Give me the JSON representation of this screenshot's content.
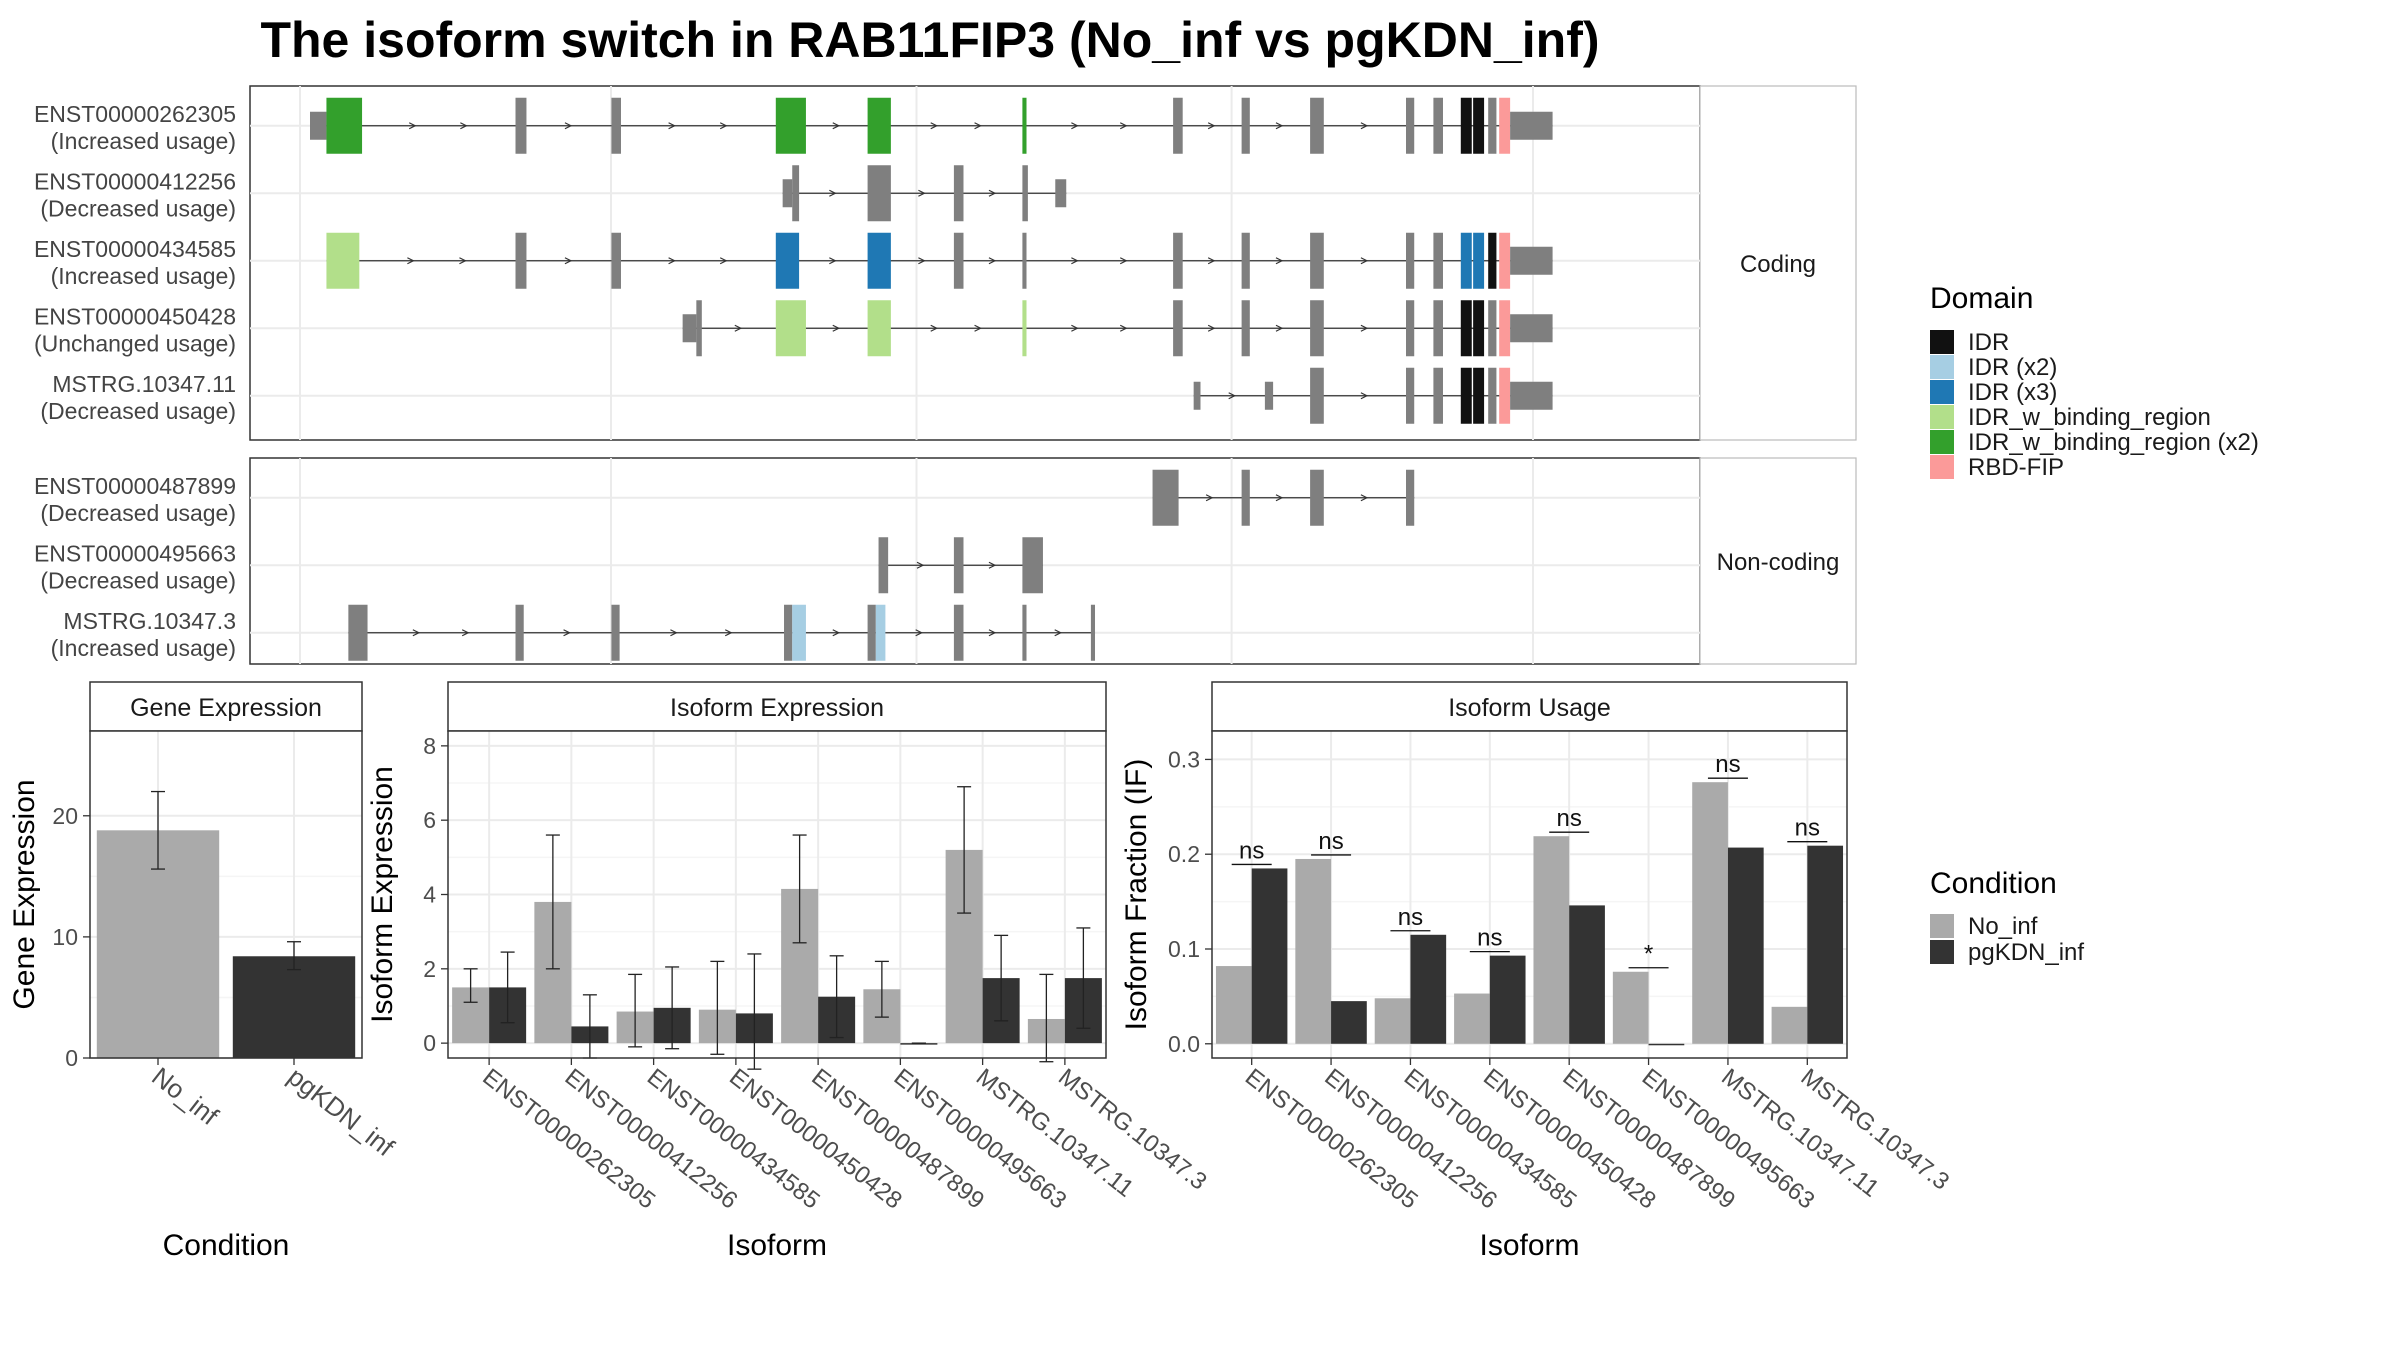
{
  "figure": {
    "title": "The isoform switch in RAB11FIP3 (No_inf vs pgKDN_inf)"
  },
  "colors": {
    "exon": "#7f7f7f",
    "no_inf": "#aaaaaa",
    "pgkdn_inf": "#333333",
    "panel_border": "#333333",
    "strip_bg": "#ffffff",
    "grid": "#ebebeb"
  },
  "structure": {
    "coding_label": "Coding",
    "noncoding_label": "Non-coding",
    "coding": [
      {
        "id": "ENST00000262305",
        "usage": "(Increased usage)",
        "start": 0.0,
        "end": 0.92,
        "exons": [
          [
            0.0,
            0.012,
            "s"
          ],
          [
            0.012,
            0.038,
            "IDR_w_binding_region (x2)"
          ],
          [
            0.15,
            0.158,
            "n"
          ],
          [
            0.22,
            0.227,
            "n"
          ],
          [
            0.34,
            0.362,
            "IDR_w_binding_region (x2)"
          ],
          [
            0.407,
            0.424,
            "IDR_w_binding_region (x2)"
          ],
          [
            0.52,
            0.523,
            "IDR_w_binding_region (x2)"
          ],
          [
            0.63,
            0.637,
            "n"
          ],
          [
            0.68,
            0.686,
            "n"
          ],
          [
            0.73,
            0.74,
            "n"
          ],
          [
            0.8,
            0.806,
            "n"
          ],
          [
            0.82,
            0.827,
            "n"
          ],
          [
            0.84,
            0.848,
            "IDR"
          ],
          [
            0.849,
            0.857,
            "IDR"
          ],
          [
            0.86,
            0.866,
            "n"
          ],
          [
            0.868,
            0.876,
            "RBD-FIP"
          ],
          [
            0.876,
            0.907,
            "s"
          ]
        ]
      },
      {
        "id": "ENST00000412256",
        "usage": "(Decreased usage)",
        "start": 0.345,
        "end": 0.53,
        "exons": [
          [
            0.345,
            0.352,
            "s"
          ],
          [
            0.352,
            0.357,
            "n"
          ],
          [
            0.407,
            0.424,
            "n"
          ],
          [
            0.47,
            0.477,
            "n"
          ],
          [
            0.52,
            0.524,
            "n"
          ],
          [
            0.544,
            0.552,
            "s"
          ]
        ]
      },
      {
        "id": "ENST00000434585",
        "usage": "(Increased usage)",
        "start": 0.012,
        "end": 0.92,
        "exons": [
          [
            0.012,
            0.036,
            "IDR_w_binding_region"
          ],
          [
            0.15,
            0.158,
            "n"
          ],
          [
            0.22,
            0.227,
            "n"
          ],
          [
            0.34,
            0.357,
            "IDR (x3)"
          ],
          [
            0.407,
            0.424,
            "IDR (x3)"
          ],
          [
            0.47,
            0.477,
            "n"
          ],
          [
            0.52,
            0.523,
            "n"
          ],
          [
            0.63,
            0.637,
            "n"
          ],
          [
            0.68,
            0.686,
            "n"
          ],
          [
            0.73,
            0.74,
            "n"
          ],
          [
            0.8,
            0.806,
            "n"
          ],
          [
            0.82,
            0.827,
            "n"
          ],
          [
            0.84,
            0.848,
            "IDR (x3)"
          ],
          [
            0.849,
            0.857,
            "IDR (x3)"
          ],
          [
            0.86,
            0.866,
            "IDR"
          ],
          [
            0.868,
            0.876,
            "RBD-FIP"
          ],
          [
            0.876,
            0.907,
            "s"
          ]
        ]
      },
      {
        "id": "ENST00000450428",
        "usage": "(Unchanged usage)",
        "start": 0.28,
        "end": 0.92,
        "exons": [
          [
            0.272,
            0.282,
            "s"
          ],
          [
            0.282,
            0.286,
            "n"
          ],
          [
            0.34,
            0.362,
            "IDR_w_binding_region"
          ],
          [
            0.407,
            0.424,
            "IDR_w_binding_region"
          ],
          [
            0.52,
            0.523,
            "IDR_w_binding_region"
          ],
          [
            0.63,
            0.637,
            "n"
          ],
          [
            0.68,
            0.686,
            "n"
          ],
          [
            0.73,
            0.74,
            "n"
          ],
          [
            0.8,
            0.806,
            "n"
          ],
          [
            0.82,
            0.827,
            "n"
          ],
          [
            0.84,
            0.848,
            "IDR"
          ],
          [
            0.849,
            0.857,
            "IDR"
          ],
          [
            0.86,
            0.866,
            "n"
          ],
          [
            0.868,
            0.876,
            "RBD-FIP"
          ],
          [
            0.876,
            0.907,
            "s"
          ]
        ]
      },
      {
        "id": "MSTRG.10347.11",
        "usage": "(Decreased usage)",
        "start": 0.645,
        "end": 0.92,
        "exons": [
          [
            0.645,
            0.65,
            "s"
          ],
          [
            0.697,
            0.703,
            "s"
          ],
          [
            0.73,
            0.74,
            "n"
          ],
          [
            0.8,
            0.806,
            "n"
          ],
          [
            0.82,
            0.827,
            "n"
          ],
          [
            0.84,
            0.848,
            "IDR"
          ],
          [
            0.849,
            0.857,
            "IDR"
          ],
          [
            0.86,
            0.866,
            "n"
          ],
          [
            0.868,
            0.876,
            "RBD-FIP"
          ],
          [
            0.876,
            0.907,
            "s"
          ]
        ]
      }
    ],
    "noncoding": [
      {
        "id": "ENST00000487899",
        "usage": "(Decreased usage)",
        "start": 0.615,
        "end": 0.8,
        "exons": [
          [
            0.615,
            0.634,
            "n"
          ],
          [
            0.68,
            0.686,
            "n"
          ],
          [
            0.73,
            0.74,
            "n"
          ],
          [
            0.8,
            0.806,
            "n"
          ]
        ]
      },
      {
        "id": "ENST00000495663",
        "usage": "(Decreased usage)",
        "start": 0.415,
        "end": 0.53,
        "exons": [
          [
            0.415,
            0.422,
            "n"
          ],
          [
            0.47,
            0.477,
            "n"
          ],
          [
            0.52,
            0.535,
            "n"
          ]
        ]
      },
      {
        "id": "MSTRG.10347.3",
        "usage": "(Increased usage)",
        "start": 0.028,
        "end": 0.57,
        "exons": [
          [
            0.028,
            0.042,
            "n"
          ],
          [
            0.15,
            0.156,
            "n"
          ],
          [
            0.22,
            0.226,
            "n"
          ],
          [
            0.346,
            0.352,
            "n"
          ],
          [
            0.352,
            0.362,
            "IDR (x2)"
          ],
          [
            0.407,
            0.413,
            "n"
          ],
          [
            0.413,
            0.42,
            "IDR (x2)"
          ],
          [
            0.47,
            0.477,
            "n"
          ],
          [
            0.52,
            0.523,
            "n"
          ],
          [
            0.57,
            0.573,
            "n"
          ]
        ]
      }
    ]
  },
  "domain_legend": {
    "title": "Domain",
    "items": [
      {
        "label": "IDR",
        "color": "#111111"
      },
      {
        "label": "IDR (x2)",
        "color": "#a6cee3"
      },
      {
        "label": "IDR (x3)",
        "color": "#1f78b4"
      },
      {
        "label": "IDR_w_binding_region",
        "color": "#b2df8a"
      },
      {
        "label": "IDR_w_binding_region (x2)",
        "color": "#33a02c"
      },
      {
        "label": "RBD-FIP",
        "color": "#fb9a99"
      }
    ]
  },
  "condition_legend": {
    "title": "Condition",
    "items": [
      {
        "label": "No_inf",
        "color": "#aaaaaa"
      },
      {
        "label": "pgKDN_inf",
        "color": "#333333"
      }
    ]
  },
  "chart_data": [
    {
      "type": "bar",
      "strip": "Gene Expression",
      "xlabel": "Condition",
      "ylabel": "Gene Expression",
      "ylim": [
        0,
        27
      ],
      "yticks": [
        0,
        10,
        20
      ],
      "categories": [
        "No_inf",
        "pgKDN_inf"
      ],
      "values": [
        18.8,
        8.4
      ],
      "errors": [
        [
          15.6,
          22.0
        ],
        [
          7.3,
          9.6
        ]
      ]
    },
    {
      "type": "bar",
      "strip": "Isoform Expression",
      "xlabel": "Isoform",
      "ylabel": "Isoform Expression",
      "ylim": [
        -0.4,
        8.4
      ],
      "yticks": [
        0,
        2,
        4,
        6,
        8
      ],
      "categories": [
        "ENST00000262305",
        "ENST00000412256",
        "ENST00000434585",
        "ENST00000450428",
        "ENST00000487899",
        "ENST00000495663",
        "MSTRG.10347.11",
        "MSTRG.10347.3"
      ],
      "series": [
        {
          "name": "No_inf",
          "values": [
            1.5,
            3.8,
            0.85,
            0.9,
            4.15,
            1.45,
            5.2,
            0.65
          ],
          "errors": [
            [
              1.1,
              2.0
            ],
            [
              2.0,
              5.6
            ],
            [
              -0.1,
              1.85
            ],
            [
              -0.3,
              2.2
            ],
            [
              2.7,
              5.6
            ],
            [
              0.7,
              2.2
            ],
            [
              3.5,
              6.9
            ],
            [
              -0.5,
              1.85
            ]
          ]
        },
        {
          "name": "pgKDN_inf",
          "values": [
            1.5,
            0.45,
            0.95,
            0.8,
            1.25,
            0.0,
            1.75,
            1.75
          ],
          "errors": [
            [
              0.55,
              2.45
            ],
            [
              -0.4,
              1.3
            ],
            [
              -0.15,
              2.05
            ],
            [
              -0.7,
              2.4
            ],
            [
              0.15,
              2.35
            ],
            [
              0.0,
              0.0
            ],
            [
              0.6,
              2.9
            ],
            [
              0.4,
              3.1
            ]
          ]
        }
      ]
    },
    {
      "type": "bar",
      "strip": "Isoform Usage",
      "xlabel": "Isoform",
      "ylabel": "Isoform Fraction (IF)",
      "ylim": [
        -0.015,
        0.33
      ],
      "yticks": [
        0.0,
        0.1,
        0.2,
        0.3
      ],
      "categories": [
        "ENST00000262305",
        "ENST00000412256",
        "ENST00000434585",
        "ENST00000450428",
        "ENST00000487899",
        "ENST00000495663",
        "MSTRG.10347.11",
        "MSTRG.10347.3"
      ],
      "series": [
        {
          "name": "No_inf",
          "values": [
            0.082,
            0.195,
            0.048,
            0.053,
            0.219,
            0.076,
            0.276,
            0.039
          ]
        },
        {
          "name": "pgKDN_inf",
          "values": [
            0.185,
            0.045,
            0.115,
            0.093,
            0.146,
            0.0,
            0.207,
            0.209
          ]
        }
      ],
      "significance": [
        "ns",
        "ns",
        "ns",
        "ns",
        "ns",
        "*",
        "ns",
        "ns"
      ]
    }
  ]
}
